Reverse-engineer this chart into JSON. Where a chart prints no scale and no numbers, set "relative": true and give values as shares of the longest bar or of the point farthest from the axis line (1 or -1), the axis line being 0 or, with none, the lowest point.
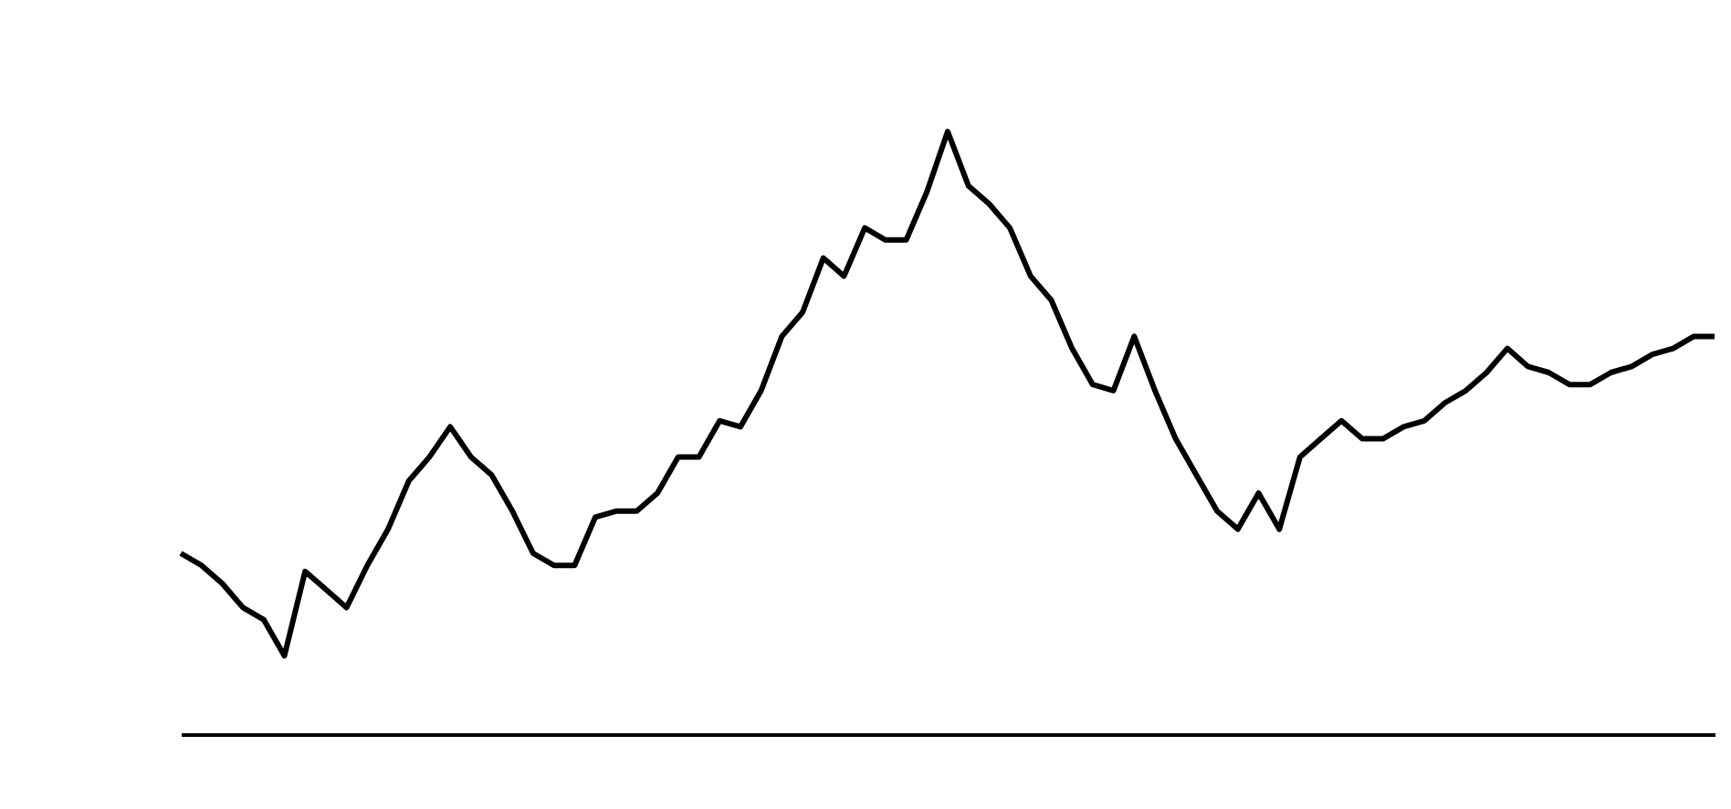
{
  "chart_data": {
    "type": "line",
    "relative": true,
    "categories": [
      null,
      null,
      null,
      null,
      null,
      null,
      null,
      null,
      null,
      null,
      null,
      null,
      null,
      null,
      null,
      null,
      null,
      null,
      null,
      null,
      null,
      null,
      null,
      null,
      null,
      null,
      null,
      null,
      null,
      null,
      null,
      null,
      null,
      null,
      null,
      null,
      null,
      null,
      null,
      null,
      null,
      null,
      null,
      null,
      null,
      null,
      null,
      null,
      null,
      null,
      null,
      null,
      null,
      null,
      null,
      null,
      null,
      null,
      null,
      null,
      null,
      null,
      null,
      null,
      null,
      null,
      null,
      null,
      null,
      null,
      null,
      null,
      null,
      null,
      null
    ],
    "series": [
      {
        "color": "#000000",
        "values": [
          0.3,
          0.28,
          0.25,
          0.21,
          0.19,
          0.13,
          0.27,
          0.24,
          0.21,
          0.28,
          0.34,
          0.42,
          0.46,
          0.51,
          0.46,
          0.43,
          0.37,
          0.3,
          0.28,
          0.28,
          0.36,
          0.37,
          0.37,
          0.4,
          0.46,
          0.46,
          0.52,
          0.51,
          0.57,
          0.66,
          0.7,
          0.79,
          0.76,
          0.84,
          0.82,
          0.82,
          0.9,
          1,
          0.91,
          0.88,
          0.84,
          0.76,
          0.72,
          0.64,
          0.58,
          0.57,
          0.66,
          0.57,
          0.49,
          0.43,
          0.37,
          0.34,
          0.4,
          0.34,
          0.46,
          0.49,
          0.52,
          0.49,
          0.49,
          0.51,
          0.52,
          0.55,
          0.57,
          0.6,
          0.64,
          0.61,
          0.6,
          0.58,
          0.58,
          0.6,
          0.61,
          0.63,
          0.64,
          0.66,
          0.66
        ]
      }
    ],
    "line_style": "solid",
    "marker": "none",
    "legend": false
  }
}
